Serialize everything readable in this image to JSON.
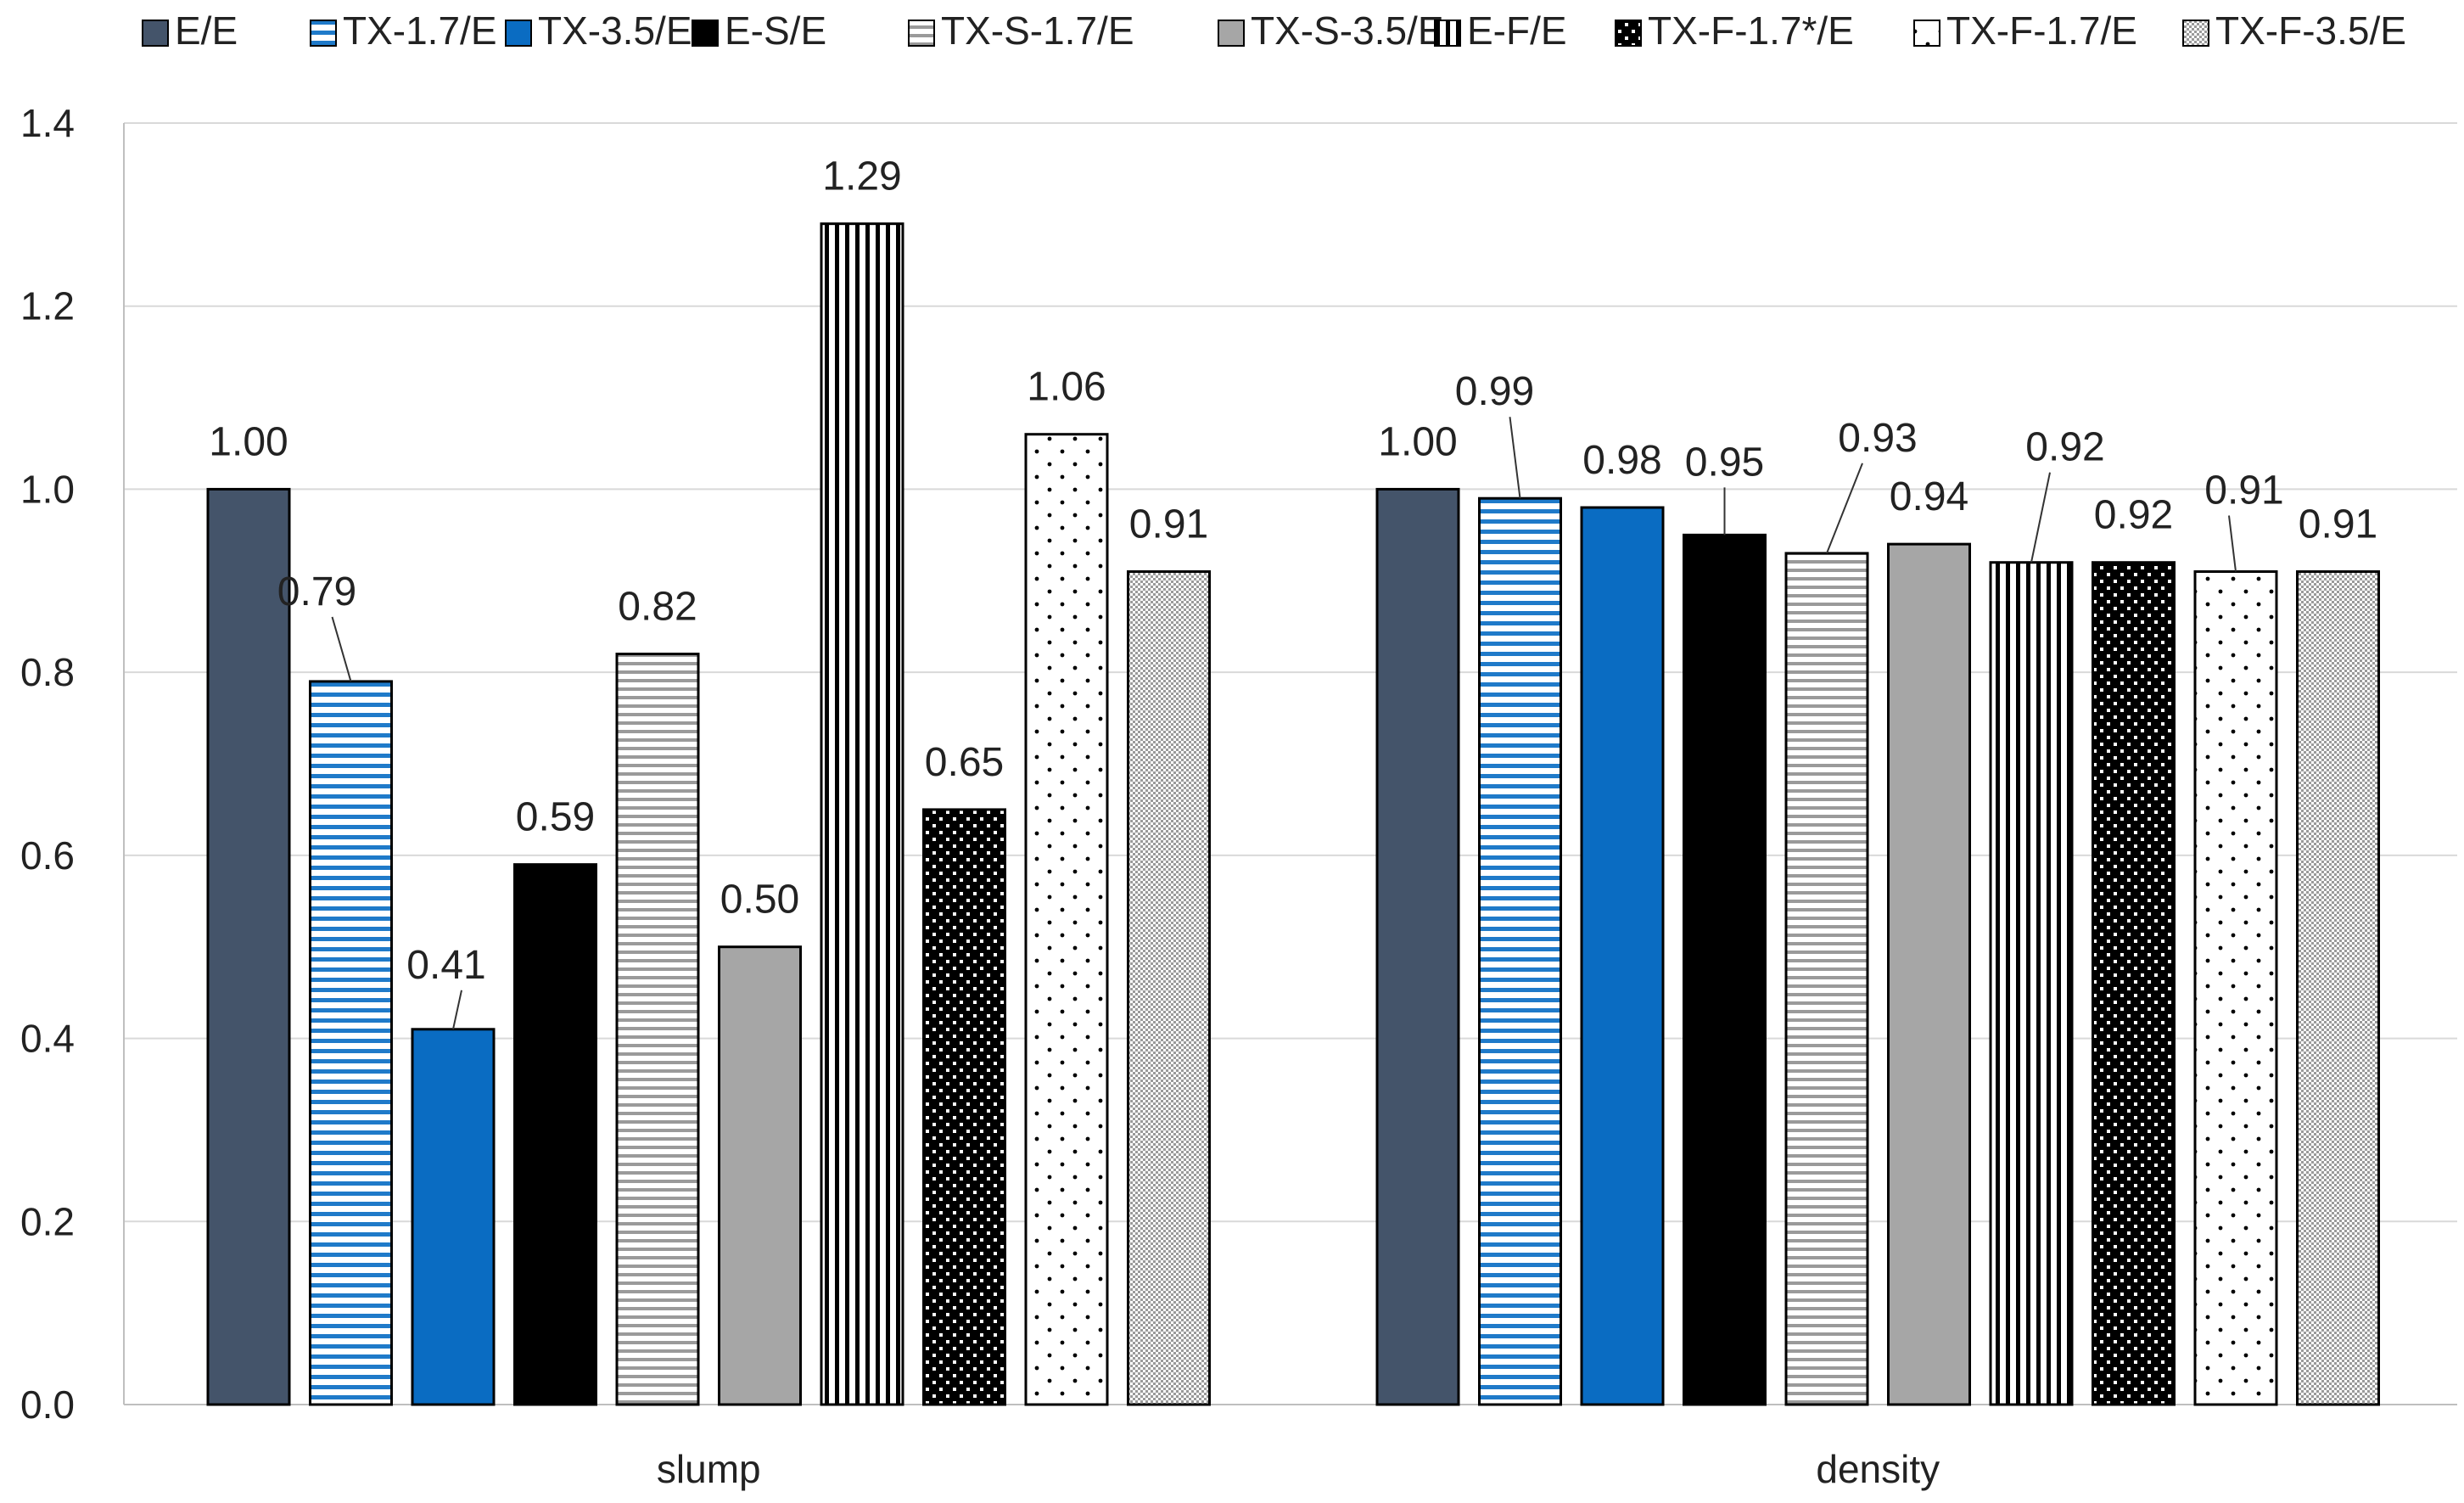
{
  "chart_data": {
    "type": "bar",
    "title": "",
    "xlabel": "",
    "ylabel": "",
    "ylim": [
      0,
      1.4
    ],
    "yticks": [
      0.0,
      0.2,
      0.4,
      0.6,
      0.8,
      1.0,
      1.2,
      1.4
    ],
    "ytick_labels": [
      "0.0",
      "0.2",
      "0.4",
      "0.6",
      "0.8",
      "1.0",
      "1.2",
      "1.4"
    ],
    "grid": true,
    "legend_position": "top",
    "categories": [
      "slump",
      "density"
    ],
    "series": [
      {
        "name": "E/E",
        "values": [
          1.0,
          1.0
        ],
        "labels": [
          "1.00",
          "1.00"
        ],
        "fill": "#44546a",
        "pattern": "solid"
      },
      {
        "name": "TX-1.7/E",
        "values": [
          0.79,
          0.99
        ],
        "labels": [
          "0.79",
          "0.99"
        ],
        "fill": "#1f7ac9",
        "pattern": "hstripe-blue"
      },
      {
        "name": "TX-3.5/E",
        "values": [
          0.41,
          0.98
        ],
        "labels": [
          "0.41",
          "0.98"
        ],
        "fill": "#0a6cc2",
        "pattern": "solid"
      },
      {
        "name": "E-S/E",
        "values": [
          0.59,
          0.95
        ],
        "labels": [
          "0.59",
          "0.95"
        ],
        "fill": "#000000",
        "pattern": "solid"
      },
      {
        "name": "TX-S-1.7/E",
        "values": [
          0.82,
          0.93
        ],
        "labels": [
          "0.82",
          "0.93"
        ],
        "fill": "#9a9a9a",
        "pattern": "hstripe-gray"
      },
      {
        "name": "TX-S-3.5/E",
        "values": [
          0.5,
          0.94
        ],
        "labels": [
          "0.50",
          "0.94"
        ],
        "fill": "#a6a6a6",
        "pattern": "solid"
      },
      {
        "name": "E-F/E",
        "values": [
          1.29,
          0.92
        ],
        "labels": [
          "1.29",
          "0.92"
        ],
        "fill": "#000000",
        "pattern": "vstripe"
      },
      {
        "name": "TX-F-1.7*/E",
        "values": [
          0.65,
          0.92
        ],
        "labels": [
          "0.65",
          "0.92"
        ],
        "fill": "#000000",
        "pattern": "checker"
      },
      {
        "name": "TX-F-1.7/E",
        "values": [
          1.06,
          0.91
        ],
        "labels": [
          "1.06",
          "0.91"
        ],
        "fill": "#000000",
        "pattern": "dots"
      },
      {
        "name": "TX-F-3.5/E",
        "values": [
          0.91,
          0.91
        ],
        "labels": [
          "0.91",
          "0.91"
        ],
        "fill": "#999999",
        "pattern": "fine-dots"
      }
    ]
  }
}
